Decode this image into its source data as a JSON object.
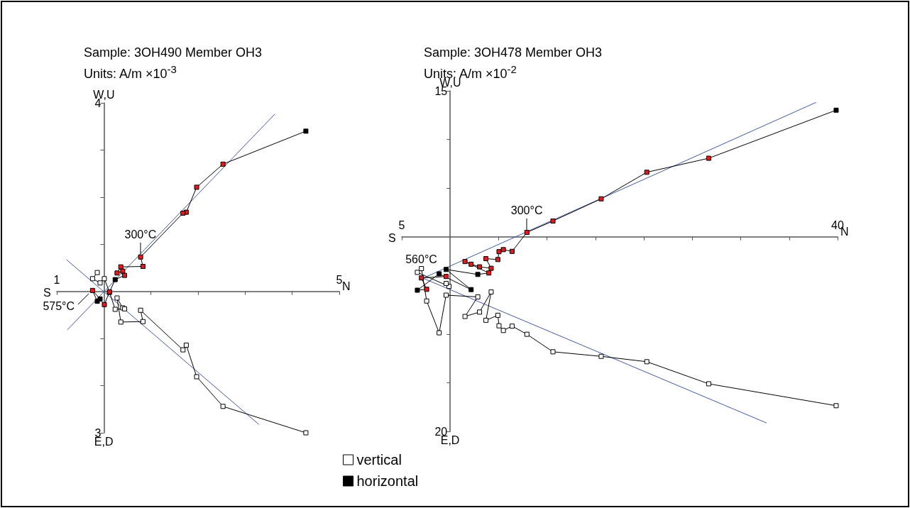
{
  "chart_data": [
    {
      "type": "line",
      "title": "Sample: 3OH490 Member OH3",
      "subtitle": "Units: A/m ×10$^{-3}$",
      "xlim": [
        -1,
        5
      ],
      "ylim": [
        -3,
        4
      ],
      "xticks": [
        {
          "value": -1,
          "label": "1"
        },
        {
          "value": 1,
          "label": null
        },
        {
          "value": 2,
          "label": null
        },
        {
          "value": 3,
          "label": null
        },
        {
          "value": 4,
          "label": null
        },
        {
          "value": 5,
          "label": "5"
        }
      ],
      "yticks": [
        {
          "value": -3,
          "label": "3"
        },
        {
          "value": -2,
          "label": null
        },
        {
          "value": -1,
          "label": null
        },
        {
          "value": 1,
          "label": null
        },
        {
          "value": 2,
          "label": null
        },
        {
          "value": 3,
          "label": null
        },
        {
          "value": 4,
          "label": "4"
        }
      ],
      "series": [
        {
          "color": "#ffffff",
          "marker": "square",
          "x": [
            4.29,
            2.53,
            1.97,
            1.75,
            1.68,
            0.78,
            0.83,
            0.36,
            0.28,
            0.4,
            0.44,
            0.24,
            0.12,
            0.01,
            -0.08,
            -0.24,
            -0.14
          ],
          "values": [
            -3.0,
            -2.44,
            -1.81,
            -1.14,
            -1.24,
            -0.4,
            -0.64,
            -0.65,
            -0.14,
            -0.35,
            -0.37,
            -0.38,
            -0.02,
            0.27,
            0.18,
            0.27,
            0.4
          ]
        },
        {
          "color": "#000000",
          "marker": "square",
          "colors": [
            "#000000",
            "#e31a1c",
            "#e31a1c",
            "#e31a1c",
            "#e31a1c",
            "#e31a1c",
            "#e31a1c",
            "#e31a1c",
            "#e31a1c",
            "#e31a1c",
            "#e31a1c",
            "#000000",
            "#e31a1c",
            "#e31a1c",
            "#000000",
            "#e31a1c",
            "#000000"
          ],
          "x": [
            4.29,
            2.53,
            1.97,
            1.75,
            1.68,
            0.78,
            0.83,
            0.36,
            0.28,
            0.4,
            0.44,
            0.24,
            0.12,
            0.01,
            -0.08,
            -0.24,
            -0.14
          ],
          "values": [
            3.4,
            2.7,
            2.21,
            1.68,
            1.66,
            0.73,
            0.53,
            0.52,
            0.39,
            0.43,
            0.34,
            0.25,
            -0.01,
            -0.28,
            -0.16,
            0.02,
            -0.21
          ]
        },
        {
          "color": "#3f5aa8",
          "marker": "none",
          "x": [
            -0.77,
            3.63
          ],
          "values": [
            -0.81,
            3.76
          ]
        },
        {
          "color": "#3f5aa8",
          "marker": "none",
          "x": [
            -0.79,
            3.29
          ],
          "values": [
            0.67,
            -2.82
          ]
        }
      ],
      "annotations": [
        "S",
        "N",
        "W,U",
        "E,D",
        {
          "text": "300°C",
          "x": 0.78,
          "y": 0.73
        },
        {
          "text": "575°C",
          "x": -0.24,
          "y": 0.02
        }
      ]
    },
    {
      "type": "line",
      "title": "Sample: 3OH478 Member OH3",
      "subtitle": "Units: A/m ×10$^{-2}$",
      "xlim": [
        -5,
        40
      ],
      "ylim": [
        -20,
        15
      ],
      "xticks": [
        {
          "value": -5,
          "label": "5"
        },
        {
          "value": 5,
          "label": null
        },
        {
          "value": 10,
          "label": null
        },
        {
          "value": 15,
          "label": null
        },
        {
          "value": 20,
          "label": null
        },
        {
          "value": 25,
          "label": null
        },
        {
          "value": 30,
          "label": null
        },
        {
          "value": 35,
          "label": null
        },
        {
          "value": 40,
          "label": "40"
        }
      ],
      "yticks": [
        {
          "value": -20,
          "label": "20"
        },
        {
          "value": -15,
          "label": null
        },
        {
          "value": -10,
          "label": null
        },
        {
          "value": -5,
          "label": null
        },
        {
          "value": 5,
          "label": null
        },
        {
          "value": 10,
          "label": null
        },
        {
          "value": 15,
          "label": "15"
        }
      ],
      "legend": "bottom left",
      "series": [
        {
          "name": "vertical",
          "color": "#ffffff",
          "marker": "square",
          "x": [
            39.85,
            26.69,
            20.3,
            15.59,
            10.61,
            7.92,
            6.39,
            5.49,
            5.04,
            4.92,
            3.69,
            4.23,
            3.03,
            1.53,
            2.85,
            -0.42,
            -1.14,
            -2.43,
            -2.97,
            -3.39,
            -0.12,
            -0.42
          ],
          "values": [
            -17.36,
            -15.11,
            -12.84,
            -12.29,
            -11.82,
            -10.02,
            -9.18,
            -9.63,
            -9.15,
            -8.07,
            -8.58,
            -5.67,
            -7.74,
            -8.19,
            -6.18,
            -6.0,
            -9.87,
            -6.6,
            -3.27,
            -3.66,
            -5.1,
            -4.8
          ]
        },
        {
          "name": "horizontal",
          "color": "#000000",
          "marker": "square",
          "colors": [
            "#000000",
            "#e31a1c",
            "#e31a1c",
            "#e31a1c",
            "#e31a1c",
            "#e31a1c",
            "#e31a1c",
            "#e31a1c",
            "#e31a1c",
            "#e31a1c",
            "#e31a1c",
            "#e31a1c",
            "#e31a1c",
            "#e31a1c",
            "#e31a1c",
            "#e31a1c",
            "#000000",
            "#000000",
            "#000000",
            "#000000",
            "#000000",
            "#e31a1c",
            "#e31a1c",
            "#e31a1c"
          ],
          "x": [
            39.85,
            26.69,
            20.3,
            15.59,
            10.61,
            7.92,
            6.39,
            5.49,
            5.04,
            4.92,
            3.69,
            4.23,
            3.03,
            2.16,
            1.53,
            3.99,
            2.85,
            -0.42,
            2.16,
            -1.14,
            -3.39,
            -2.43,
            -2.97,
            -0.42
          ],
          "values": [
            13.01,
            8.07,
            6.63,
            3.9,
            1.62,
            0.45,
            -1.5,
            -1.32,
            -1.53,
            -2.34,
            -2.25,
            -3.24,
            -3.09,
            -2.82,
            -2.55,
            -3.72,
            -3.87,
            -3.36,
            -5.43,
            -3.81,
            -5.49,
            -5.4,
            -4.23,
            -4.08
          ]
        },
        {
          "color": "#3f5aa8",
          "marker": "none",
          "x": [
            -2.88,
            37.75
          ],
          "values": [
            -4.29,
            13.8
          ]
        },
        {
          "color": "#3f5aa8",
          "marker": "none",
          "x": [
            -2.73,
            32.65
          ],
          "values": [
            -4.29,
            -19.13
          ]
        }
      ],
      "annotations": [
        "S",
        "N",
        "W,U",
        "E,D",
        {
          "text": "300°C",
          "x": 7.92,
          "y": 0.45
        },
        {
          "text": "560°C",
          "x": -2.97,
          "y": -3.27
        }
      ]
    }
  ]
}
